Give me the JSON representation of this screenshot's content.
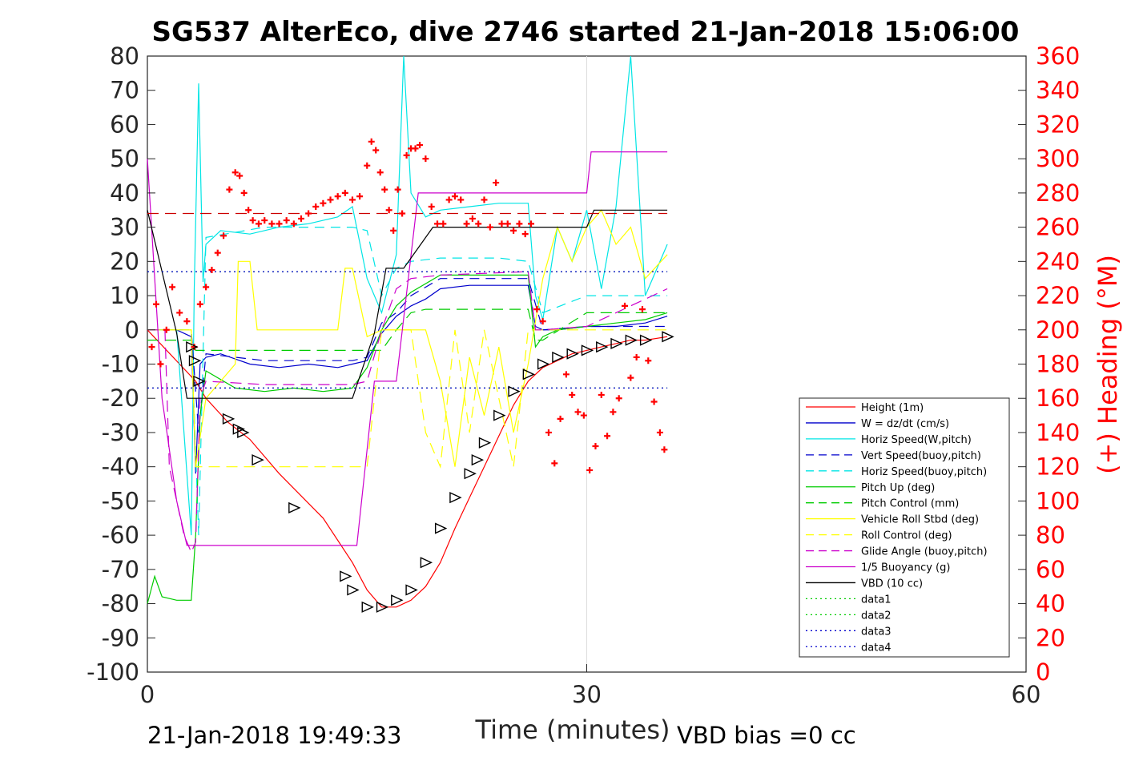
{
  "chart_data": {
    "type": "line",
    "title": "SG537 AlterEco, dive 2746 started 21-Jan-2018 15:06:00",
    "xlabel": "Time (minutes)",
    "ylabel_right": "(+) Heading (°M)",
    "xlim": [
      0,
      60
    ],
    "ylim_left": [
      -100,
      80
    ],
    "ylim_right": [
      0,
      360
    ],
    "x_ticks": [
      "0",
      "30",
      "60"
    ],
    "y_ticks_left": [
      "80",
      "70",
      "60",
      "50",
      "40",
      "30",
      "20",
      "10",
      "0",
      "-10",
      "-20",
      "-30",
      "-40",
      "-50",
      "-60",
      "-70",
      "-80",
      "-90",
      "-100"
    ],
    "y_ticks_right": [
      "360",
      "340",
      "320",
      "300",
      "280",
      "260",
      "240",
      "220",
      "200",
      "180",
      "160",
      "140",
      "120",
      "100",
      "80",
      "60",
      "40",
      "20",
      "0"
    ],
    "grid": "vertical lines at x ticks",
    "legend_position": "bottom-right",
    "footer_left": "21-Jan-2018 19:49:33",
    "footer_right": "VBD bias =0 cc",
    "legend": [
      {
        "label": "Height (1m)",
        "color": "#ff0000",
        "style": "solid"
      },
      {
        "label": "W = dz/dt (cm/s)",
        "color": "#0000cc",
        "style": "solid"
      },
      {
        "label": "Horiz Speed(W,pitch)",
        "color": "#00e5e5",
        "style": "solid"
      },
      {
        "label": "Vert Speed(buoy,pitch)",
        "color": "#0000cc",
        "style": "dashed"
      },
      {
        "label": "Horiz Speed(buoy,pitch)",
        "color": "#00e5e5",
        "style": "dashed"
      },
      {
        "label": "Pitch Up (deg)",
        "color": "#00cc00",
        "style": "solid"
      },
      {
        "label": "Pitch Control (mm)",
        "color": "#00cc00",
        "style": "dashed"
      },
      {
        "label": "Vehicle Roll Stbd (deg)",
        "color": "#ffff00",
        "style": "solid"
      },
      {
        "label": "Roll Control (deg)",
        "color": "#ffff00",
        "style": "dashed"
      },
      {
        "label": "Glide Angle (buoy,pitch)",
        "color": "#cc00cc",
        "style": "dashed"
      },
      {
        "label": "1/5 Buoyancy (g)",
        "color": "#cc00cc",
        "style": "solid"
      },
      {
        "label": "VBD (10 cc)",
        "color": "#000000",
        "style": "solid"
      },
      {
        "label": "data1",
        "color": "#00cc00",
        "style": "dotted"
      },
      {
        "label": "data2",
        "color": "#00cc00",
        "style": "dotted"
      },
      {
        "label": "data3",
        "color": "#0000cc",
        "style": "dotted"
      },
      {
        "label": "data4",
        "color": "#0000cc",
        "style": "dotted"
      }
    ],
    "series": [
      {
        "name": "Height (1m)",
        "color": "#ff0000",
        "x": [
          0,
          3.3,
          4,
          5.5,
          7,
          9,
          12,
          14,
          15,
          16,
          17,
          18,
          19,
          20,
          21,
          22,
          23,
          24,
          25,
          26,
          27,
          28,
          29,
          30,
          31,
          32,
          33,
          34,
          35.5
        ],
        "y": [
          0,
          -15,
          -20,
          -27,
          -32,
          -42,
          -55,
          -68,
          -76,
          -81,
          -81,
          -79,
          -75,
          -68,
          -58,
          -49,
          -40,
          -31,
          -22,
          -15,
          -11,
          -9,
          -7,
          -6,
          -5,
          -4,
          -3,
          -3,
          -2
        ]
      },
      {
        "name": "W = dz/dt (cm/s)",
        "color": "#0000cc",
        "x": [
          0,
          2,
          3,
          3.3,
          3.6,
          4,
          5,
          7,
          9,
          11,
          13,
          14,
          15,
          16,
          17,
          18,
          19,
          20,
          22,
          24,
          26,
          26.5,
          27,
          28,
          30,
          32,
          34,
          35.5
        ],
        "y": [
          0,
          0,
          -2,
          -42,
          -10,
          -8,
          -7,
          -10,
          -11,
          -10,
          -11,
          -10,
          -9,
          -1,
          4,
          7,
          9,
          12,
          13,
          13,
          13,
          1,
          0,
          0,
          1,
          1,
          2,
          4
        ]
      },
      {
        "name": "Horiz Speed(W,pitch)",
        "color": "#00e5e5",
        "x": [
          0,
          2,
          3,
          3.2,
          3.5,
          3.8,
          4,
          5,
          7,
          9,
          11,
          13,
          14,
          15,
          16,
          17,
          17.5,
          18,
          19,
          20,
          22,
          24,
          26,
          26.5,
          27,
          28,
          29,
          30,
          31,
          32,
          33,
          34,
          35.5
        ],
        "y": [
          0,
          0,
          -60,
          12,
          72,
          14,
          25,
          29,
          28,
          30,
          31,
          33,
          36,
          15,
          5,
          22,
          80,
          40,
          33,
          35,
          36,
          37,
          37,
          10,
          3,
          30,
          20,
          35,
          12,
          36,
          80,
          10,
          25
        ]
      },
      {
        "name": "Vert Speed(buoy,pitch)",
        "color": "#0000cc",
        "dash": "12,8",
        "x": [
          0,
          3,
          3.5,
          4,
          8,
          14,
          15,
          16,
          17,
          18,
          20,
          24,
          26,
          27,
          30,
          35.5
        ],
        "y": [
          0,
          0,
          -30,
          -7,
          -9,
          -9,
          -8,
          2,
          5,
          10,
          15,
          15,
          15,
          0,
          1,
          1
        ]
      },
      {
        "name": "Horiz Speed(buoy,pitch)",
        "color": "#00e5e5",
        "dash": "12,8",
        "x": [
          0,
          3,
          3.5,
          4,
          8,
          14,
          15,
          16,
          17,
          18,
          20,
          24,
          26,
          27,
          30,
          35.5
        ],
        "y": [
          0,
          0,
          -60,
          27,
          30,
          30,
          29,
          10,
          18,
          20,
          21,
          21,
          20,
          5,
          10,
          10
        ]
      },
      {
        "name": "Pitch Up (deg)",
        "color": "#00cc00",
        "x": [
          0,
          0.5,
          1,
          2,
          3,
          3.3,
          3.6,
          4,
          6,
          8,
          10,
          12,
          14,
          15,
          16,
          17,
          18,
          20,
          22,
          24,
          26,
          26.5,
          27,
          28,
          30,
          32,
          34,
          35.5
        ],
        "y": [
          -80,
          -72,
          -78,
          -79,
          -79,
          -60,
          -25,
          -12,
          -17,
          -18,
          -17,
          -18,
          -17,
          -11,
          0,
          7,
          11,
          16,
          16,
          16,
          16,
          -5,
          -2,
          0,
          1,
          2,
          3,
          5
        ]
      },
      {
        "name": "Pitch Control (mm)",
        "color": "#00cc00",
        "dash": "14,8",
        "x": [
          0,
          3,
          3.3,
          4,
          15,
          16,
          17,
          18,
          19,
          26,
          26.5,
          27,
          30,
          35.5
        ],
        "y": [
          -3,
          -3,
          -6,
          -6,
          -6,
          -6,
          0,
          5,
          6,
          6,
          -3,
          -3,
          5,
          5
        ]
      },
      {
        "name": "Vehicle Roll Stbd (deg)",
        "color": "#ffff00",
        "x": [
          0,
          2,
          3,
          3.3,
          4,
          6,
          6.2,
          7,
          7.5,
          8,
          10,
          13,
          13.5,
          14,
          15,
          16,
          17,
          19,
          20,
          21,
          22,
          23,
          24,
          25,
          26,
          27,
          28,
          29,
          30,
          31,
          32,
          33,
          34,
          35.5
        ],
        "y": [
          0,
          0,
          0,
          -40,
          -20,
          -10,
          20,
          20,
          0,
          0,
          0,
          0,
          18,
          18,
          -2,
          0,
          0,
          0,
          -15,
          -40,
          -8,
          -25,
          -5,
          -30,
          -10,
          15,
          30,
          20,
          30,
          35,
          25,
          30,
          15,
          22
        ]
      },
      {
        "name": "Roll Control (deg)",
        "color": "#ffff00",
        "dash": "14,8",
        "x": [
          0,
          3,
          3.3,
          4,
          15,
          16,
          18,
          19,
          20,
          21,
          22,
          23,
          24,
          25,
          26,
          27,
          30,
          35.5
        ],
        "y": [
          0,
          0,
          -40,
          -40,
          -40,
          0,
          0,
          -30,
          -40,
          0,
          -30,
          0,
          -20,
          -40,
          0,
          0,
          0,
          0
        ]
      },
      {
        "name": "Glide Angle (buoy,pitch)",
        "color": "#cc00cc",
        "dash": "14,8",
        "x": [
          0,
          1.2,
          1.5,
          2.5,
          3,
          3.3,
          3.6,
          4,
          8,
          14,
          15,
          16,
          17,
          18,
          20,
          26,
          26.5,
          27,
          30,
          35.5
        ],
        "y": [
          0,
          0,
          -40,
          -60,
          -65,
          -62,
          -20,
          -15,
          -16,
          -16,
          -15,
          0,
          12,
          15,
          16,
          17,
          0,
          0,
          1,
          12
        ]
      },
      {
        "name": "1/5 Buoyancy (g)",
        "color": "#cc00cc",
        "x": [
          0,
          1,
          2,
          2.7,
          3,
          4,
          14.3,
          15.5,
          17,
          18.5,
          19,
          24,
          30,
          30.3,
          35.5
        ],
        "y": [
          50,
          -20,
          -50,
          -63,
          -63,
          -63,
          -63,
          -15,
          -15,
          40,
          40,
          40,
          40,
          52,
          52
        ]
      },
      {
        "name": "VBD (10 cc)",
        "color": "#000000",
        "x": [
          0,
          2,
          2.7,
          3,
          4,
          14,
          15.5,
          16.3,
          17.5,
          19.5,
          22,
          30,
          30.5,
          32,
          35.5
        ],
        "y": [
          35,
          -1,
          -20,
          -20,
          -20,
          -20,
          -1,
          18,
          18,
          30,
          30,
          30,
          35,
          35,
          35
        ]
      },
      {
        "name": "data1",
        "color": "#00cc00",
        "dash": "2,4",
        "x": [
          0,
          35.5
        ],
        "y": [
          17,
          17
        ]
      },
      {
        "name": "data2",
        "color": "#00cc00",
        "dash": "2,4",
        "x": [
          0,
          35.5
        ],
        "y": [
          -17,
          -17
        ]
      },
      {
        "name": "data3",
        "color": "#0000cc",
        "dash": "2,4",
        "x": [
          0,
          35.5
        ],
        "y": [
          17,
          17
        ]
      },
      {
        "name": "data4",
        "color": "#0000cc",
        "dash": "2,4",
        "x": [
          0,
          35.5
        ],
        "y": [
          -17,
          -17
        ]
      }
    ],
    "reference_line": {
      "color": "#cc0000",
      "style": "dashed",
      "x": [
        0,
        35.5
      ],
      "heading": 268
    },
    "heading_points": {
      "color": "#ff0000",
      "marker": "+",
      "x": [
        0.3,
        0.6,
        0.9,
        1.3,
        1.7,
        2.2,
        2.7,
        3.2,
        3.6,
        4.0,
        4.4,
        4.8,
        5.2,
        5.6,
        6.0,
        6.3,
        6.6,
        6.9,
        7.2,
        7.6,
        8.0,
        8.5,
        9,
        9.5,
        10,
        10.5,
        11,
        11.5,
        12,
        12.5,
        13,
        13.5,
        14,
        14.5,
        15,
        15.3,
        15.6,
        15.9,
        16.2,
        16.5,
        16.8,
        17.1,
        17.4,
        17.7,
        18,
        18.3,
        18.6,
        19,
        19.4,
        19.8,
        20.2,
        20.6,
        21,
        21.4,
        21.8,
        22.2,
        22.6,
        23,
        23.4,
        23.8,
        24.2,
        24.6,
        25,
        25.4,
        25.8,
        26.2,
        26.6,
        27,
        27.4,
        27.8,
        28.2,
        28.6,
        29,
        29.4,
        29.8,
        30.2,
        30.6,
        31,
        31.4,
        31.8,
        32.2,
        32.6,
        33,
        33.4,
        33.8,
        34.2,
        34.6,
        35,
        35.3
      ],
      "heading": [
        190,
        215,
        180,
        200,
        225,
        210,
        205,
        190,
        215,
        225,
        235,
        245,
        255,
        282,
        292,
        290,
        280,
        270,
        264,
        262,
        264,
        262,
        262,
        264,
        262,
        265,
        268,
        272,
        274,
        276,
        278,
        280,
        276,
        278,
        296,
        310,
        305,
        292,
        282,
        270,
        258,
        282,
        268,
        302,
        306,
        306,
        308,
        300,
        272,
        262,
        262,
        276,
        278,
        276,
        262,
        265,
        262,
        276,
        260,
        286,
        262,
        262,
        258,
        262,
        256,
        262,
        212,
        205,
        140,
        122,
        148,
        174,
        162,
        152,
        150,
        118,
        132,
        162,
        138,
        152,
        160,
        214,
        172,
        184,
        212,
        182,
        158,
        140,
        130
      ]
    },
    "markers": {
      "color": "#000000",
      "marker": "triangle-outline",
      "x": [
        3,
        3.2,
        3.5,
        5.5,
        6.2,
        6.5,
        7.5,
        10,
        13.5,
        14,
        15,
        16,
        17,
        18,
        19,
        20,
        21,
        22,
        22.5,
        23,
        24,
        25,
        26,
        27,
        28,
        29,
        30,
        31,
        32,
        33,
        34,
        35.5
      ],
      "y": [
        -5,
        -9,
        -15,
        -26,
        -29,
        -30,
        -38,
        -52,
        -72,
        -76,
        -81,
        -81,
        -79,
        -76,
        -68,
        -58,
        -49,
        -42,
        -38,
        -33,
        -25,
        -18,
        -13,
        -10,
        -8,
        -7,
        -6,
        -5,
        -4,
        -3,
        -3,
        -2
      ]
    }
  }
}
